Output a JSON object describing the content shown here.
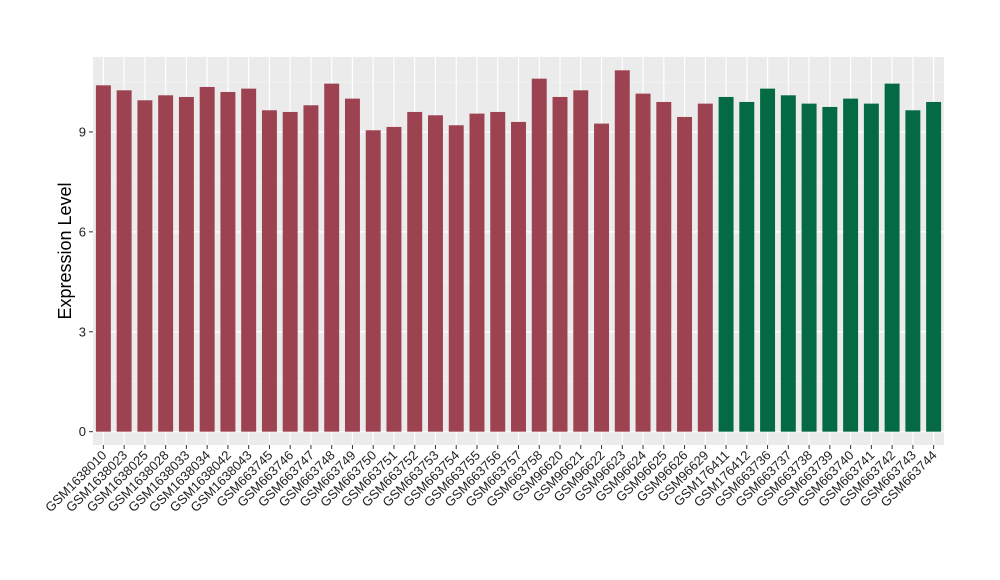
{
  "chart_data": {
    "type": "bar",
    "title": "",
    "xlabel": "",
    "ylabel": "Expression Level",
    "ylim": [
      -0.4,
      11.25
    ],
    "yticks": [
      0,
      3,
      6,
      9
    ],
    "grid": true,
    "legend": "none",
    "categories": [
      "GSM1638010",
      "GSM1638023",
      "GSM1638025",
      "GSM1638028",
      "GSM1638033",
      "GSM1638034",
      "GSM1638042",
      "GSM1638043",
      "GSM663745",
      "GSM663746",
      "GSM663747",
      "GSM663748",
      "GSM663749",
      "GSM663750",
      "GSM663751",
      "GSM663752",
      "GSM663753",
      "GSM663754",
      "GSM663755",
      "GSM663756",
      "GSM663757",
      "GSM663758",
      "GSM96620",
      "GSM96621",
      "GSM96622",
      "GSM96623",
      "GSM96624",
      "GSM96625",
      "GSM96626",
      "GSM96629",
      "GSM176411",
      "GSM176412",
      "GSM663736",
      "GSM663737",
      "GSM663738",
      "GSM663739",
      "GSM663740",
      "GSM663741",
      "GSM663742",
      "GSM663743",
      "GSM663744"
    ],
    "values": [
      10.4,
      10.25,
      9.95,
      10.1,
      10.05,
      10.35,
      10.2,
      10.3,
      9.65,
      9.6,
      9.8,
      10.45,
      10.0,
      9.05,
      9.15,
      9.6,
      9.5,
      9.2,
      9.55,
      9.6,
      9.3,
      10.6,
      10.05,
      10.25,
      9.25,
      10.85,
      10.15,
      9.9,
      9.45,
      9.85,
      10.05,
      9.9,
      10.3,
      10.1,
      9.85,
      9.75,
      10.0,
      9.85,
      10.45,
      9.65,
      9.9
    ],
    "groups": [
      0,
      0,
      0,
      0,
      0,
      0,
      0,
      0,
      0,
      0,
      0,
      0,
      0,
      0,
      0,
      0,
      0,
      0,
      0,
      0,
      0,
      0,
      0,
      0,
      0,
      0,
      0,
      0,
      0,
      0,
      1,
      1,
      1,
      1,
      1,
      1,
      1,
      1,
      1,
      1,
      1
    ],
    "group_colors": [
      "#9c4250",
      "#046a43"
    ]
  }
}
